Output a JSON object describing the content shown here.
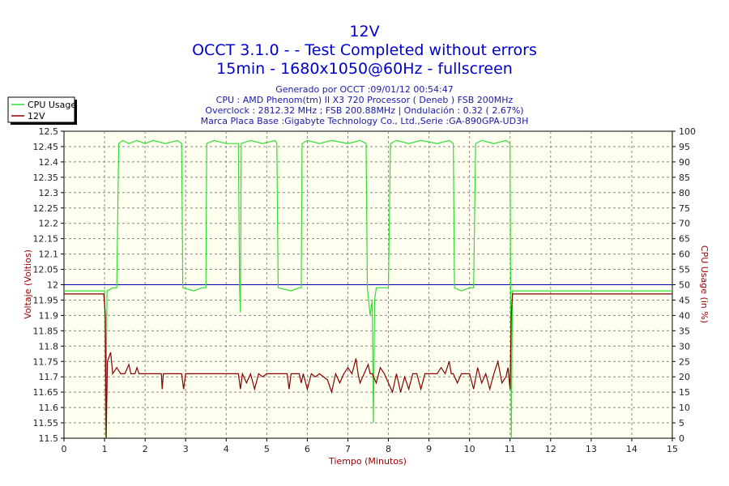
{
  "header": {
    "title_lines": [
      "12V",
      "OCCT 3.1.0 -  - Test Completed without errors",
      "15min - 1680x1050@60Hz - fullscreen"
    ],
    "info_lines": [
      "Generado por OCCT :09/01/12 00:54:47",
      "CPU : AMD Phenom(tm) II X3 720 Processor ( Deneb ) FSB 200MHz",
      "Overclock : 2812.32 MHz ; FSB 200.88MHz | Ondulación : 0.32 ( 2.67%)",
      "Marca Placa Base :Gigabyte Technology Co., Ltd.,Serie :GA-890GPA-UD3H"
    ]
  },
  "chart_data": {
    "type": "line",
    "xlabel": "Tiempo (Minutos)",
    "ylabel_left": "Voltaje (Voltios)",
    "ylabel_right": "CPU Usage (in %)",
    "xlim": [
      0,
      15
    ],
    "ylim_left": [
      11.5,
      12.5
    ],
    "ylim_right": [
      0,
      100
    ],
    "x_ticks": [
      "0",
      "1",
      "2",
      "3",
      "4",
      "5",
      "6",
      "7",
      "8",
      "9",
      "10",
      "11",
      "12",
      "13",
      "14",
      "15"
    ],
    "y_left_ticks": [
      "11.5",
      "11.55",
      "11.6",
      "11.65",
      "11.7",
      "11.75",
      "11.8",
      "11.85",
      "11.9",
      "11.95",
      "12",
      "12.05",
      "12.1",
      "12.15",
      "12.2",
      "12.25",
      "12.3",
      "12.35",
      "12.4",
      "12.45",
      "12.5"
    ],
    "y_right_ticks": [
      "0",
      "5",
      "10",
      "15",
      "20",
      "25",
      "30",
      "35",
      "40",
      "45",
      "50",
      "55",
      "60",
      "65",
      "70",
      "75",
      "80",
      "85",
      "90",
      "95",
      "100"
    ],
    "grid": true,
    "legend_position": "top-left",
    "reference_line": {
      "value": 12.0,
      "axis": "left",
      "color": "#0000aa"
    },
    "series": [
      {
        "name": "CPU Usage",
        "axis": "right",
        "color": "#33dd33",
        "points": [
          [
            0,
            48
          ],
          [
            1.0,
            48
          ],
          [
            1.03,
            0
          ],
          [
            1.06,
            48
          ],
          [
            1.2,
            49
          ],
          [
            1.3,
            49
          ],
          [
            1.35,
            96
          ],
          [
            1.45,
            97
          ],
          [
            1.6,
            96
          ],
          [
            1.8,
            97
          ],
          [
            2.0,
            96
          ],
          [
            2.2,
            97
          ],
          [
            2.5,
            96
          ],
          [
            2.8,
            97
          ],
          [
            2.9,
            96
          ],
          [
            2.93,
            49
          ],
          [
            3.2,
            48
          ],
          [
            3.4,
            49
          ],
          [
            3.5,
            49
          ],
          [
            3.52,
            96
          ],
          [
            3.7,
            97
          ],
          [
            4.0,
            96
          ],
          [
            4.3,
            96
          ],
          [
            4.33,
            49
          ],
          [
            4.35,
            41
          ],
          [
            4.37,
            96
          ],
          [
            4.6,
            97
          ],
          [
            4.9,
            96
          ],
          [
            5.2,
            97
          ],
          [
            5.25,
            96
          ],
          [
            5.28,
            49
          ],
          [
            5.6,
            48
          ],
          [
            5.8,
            49
          ],
          [
            5.85,
            49
          ],
          [
            5.87,
            96
          ],
          [
            6.0,
            97
          ],
          [
            6.3,
            96
          ],
          [
            6.6,
            97
          ],
          [
            7.0,
            96
          ],
          [
            7.3,
            97
          ],
          [
            7.45,
            96
          ],
          [
            7.48,
            49
          ],
          [
            7.55,
            40
          ],
          [
            7.6,
            45
          ],
          [
            7.63,
            5
          ],
          [
            7.66,
            45
          ],
          [
            7.7,
            49
          ],
          [
            8.0,
            49
          ],
          [
            8.05,
            96
          ],
          [
            8.2,
            97
          ],
          [
            8.5,
            96
          ],
          [
            8.8,
            97
          ],
          [
            9.2,
            96
          ],
          [
            9.5,
            97
          ],
          [
            9.6,
            96
          ],
          [
            9.63,
            49
          ],
          [
            9.8,
            48
          ],
          [
            10.0,
            49
          ],
          [
            10.1,
            49
          ],
          [
            10.15,
            96
          ],
          [
            10.3,
            97
          ],
          [
            10.6,
            96
          ],
          [
            10.9,
            97
          ],
          [
            11.0,
            96
          ],
          [
            11.03,
            0
          ],
          [
            11.06,
            48
          ],
          [
            15,
            48
          ]
        ]
      },
      {
        "name": "12V",
        "axis": "left",
        "color": "#880000",
        "points": [
          [
            0,
            11.97
          ],
          [
            0.98,
            11.97
          ],
          [
            1.02,
            11.9
          ],
          [
            1.04,
            11.5
          ],
          [
            1.07,
            11.75
          ],
          [
            1.15,
            11.78
          ],
          [
            1.2,
            11.71
          ],
          [
            1.3,
            11.73
          ],
          [
            1.4,
            11.71
          ],
          [
            1.5,
            11.71
          ],
          [
            1.6,
            11.74
          ],
          [
            1.65,
            11.71
          ],
          [
            1.75,
            11.71
          ],
          [
            1.8,
            11.73
          ],
          [
            1.85,
            11.71
          ],
          [
            2.0,
            11.71
          ],
          [
            2.4,
            11.71
          ],
          [
            2.42,
            11.66
          ],
          [
            2.45,
            11.71
          ],
          [
            2.9,
            11.71
          ],
          [
            2.95,
            11.66
          ],
          [
            3.0,
            11.71
          ],
          [
            4.3,
            11.71
          ],
          [
            4.35,
            11.66
          ],
          [
            4.4,
            11.71
          ],
          [
            4.5,
            11.68
          ],
          [
            4.6,
            11.71
          ],
          [
            4.7,
            11.66
          ],
          [
            4.8,
            11.71
          ],
          [
            4.9,
            11.7
          ],
          [
            5.0,
            11.71
          ],
          [
            5.5,
            11.71
          ],
          [
            5.55,
            11.66
          ],
          [
            5.6,
            11.71
          ],
          [
            5.8,
            11.71
          ],
          [
            5.85,
            11.68
          ],
          [
            5.9,
            11.71
          ],
          [
            6.0,
            11.66
          ],
          [
            6.1,
            11.71
          ],
          [
            6.2,
            11.7
          ],
          [
            6.3,
            11.71
          ],
          [
            6.5,
            11.69
          ],
          [
            6.6,
            11.65
          ],
          [
            6.7,
            11.71
          ],
          [
            6.8,
            11.68
          ],
          [
            6.9,
            11.71
          ],
          [
            7.0,
            11.73
          ],
          [
            7.1,
            11.71
          ],
          [
            7.2,
            11.76
          ],
          [
            7.25,
            11.71
          ],
          [
            7.3,
            11.68
          ],
          [
            7.4,
            11.71
          ],
          [
            7.5,
            11.74
          ],
          [
            7.55,
            11.71
          ],
          [
            7.6,
            11.71
          ],
          [
            7.7,
            11.68
          ],
          [
            7.8,
            11.73
          ],
          [
            7.9,
            11.71
          ],
          [
            8.0,
            11.68
          ],
          [
            8.1,
            11.65
          ],
          [
            8.2,
            11.71
          ],
          [
            8.3,
            11.65
          ],
          [
            8.4,
            11.7
          ],
          [
            8.5,
            11.66
          ],
          [
            8.6,
            11.71
          ],
          [
            8.7,
            11.71
          ],
          [
            8.8,
            11.66
          ],
          [
            8.9,
            11.71
          ],
          [
            9.2,
            11.71
          ],
          [
            9.3,
            11.73
          ],
          [
            9.4,
            11.71
          ],
          [
            9.5,
            11.75
          ],
          [
            9.55,
            11.71
          ],
          [
            9.6,
            11.71
          ],
          [
            9.7,
            11.68
          ],
          [
            9.8,
            11.71
          ],
          [
            10.0,
            11.71
          ],
          [
            10.1,
            11.66
          ],
          [
            10.2,
            11.73
          ],
          [
            10.3,
            11.68
          ],
          [
            10.4,
            11.71
          ],
          [
            10.5,
            11.66
          ],
          [
            10.6,
            11.71
          ],
          [
            10.7,
            11.75
          ],
          [
            10.8,
            11.68
          ],
          [
            10.9,
            11.7
          ],
          [
            10.95,
            11.73
          ],
          [
            11.0,
            11.66
          ],
          [
            11.03,
            11.9
          ],
          [
            11.06,
            11.97
          ],
          [
            15,
            11.97
          ]
        ]
      }
    ]
  }
}
